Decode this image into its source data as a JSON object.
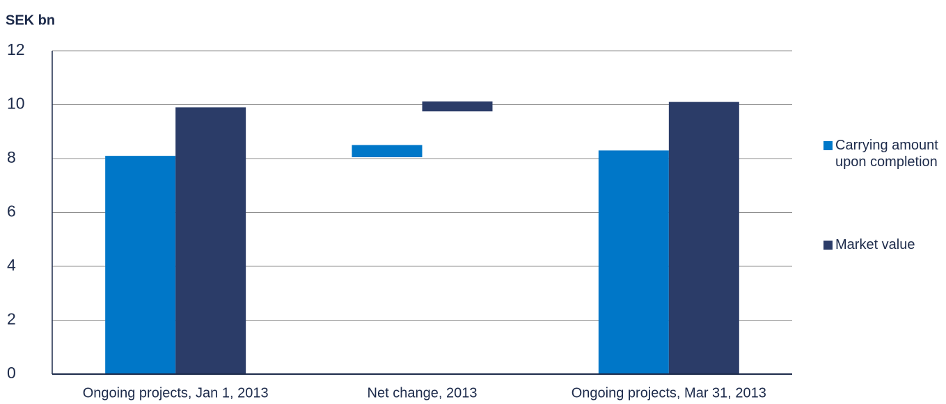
{
  "chart_data": {
    "type": "bar",
    "title": "SEK bn",
    "categories": [
      "Ongoing projects, Jan 1, 2013",
      "Net change, 2013",
      "Ongoing projects, Mar 31, 2013"
    ],
    "series": [
      {
        "name": "Carrying amount upon completion",
        "color": "#0077c8",
        "values": [
          8.1,
          0.45,
          8.3
        ],
        "start": [
          0,
          8.05,
          0
        ]
      },
      {
        "name": "Market value",
        "color": "#2b3c68",
        "values": [
          9.9,
          0.37,
          10.1
        ],
        "start": [
          0,
          9.75,
          0
        ]
      }
    ],
    "ylim": [
      0,
      12
    ],
    "yticks": [
      0,
      2,
      4,
      6,
      8,
      10,
      12
    ],
    "grid": true,
    "legend": "right"
  }
}
